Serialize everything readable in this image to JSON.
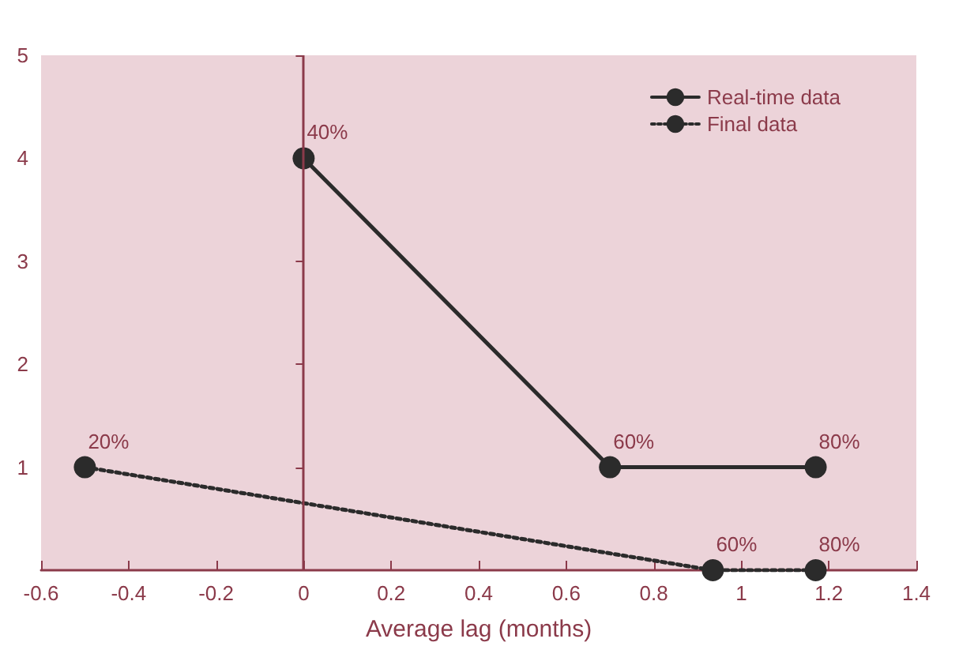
{
  "chart_data": {
    "type": "line",
    "xlabel": "Average lag (months)",
    "xlim": [
      -0.6,
      1.4
    ],
    "xticks": [
      -0.6,
      -0.4,
      -0.2,
      0,
      0.2,
      0.4,
      0.6,
      0.8,
      1,
      1.2,
      1.4
    ],
    "ylim": [
      0,
      5
    ],
    "yticks": [
      1,
      2,
      3,
      4,
      5
    ],
    "series": [
      {
        "name": "Real-time data",
        "color": "#2b2b2b",
        "x": [
          0,
          0.7,
          1.17
        ],
        "values": [
          4,
          1,
          1
        ],
        "line_style": "solid"
      },
      {
        "name": "Final data",
        "color": "#2b2b2b",
        "x": [
          -0.5,
          0.935,
          1.17
        ],
        "values": [
          1,
          0,
          0
        ],
        "line_style": "dotted"
      }
    ],
    "annotations": [
      {
        "text": "40%",
        "x": 0,
        "y": 4
      },
      {
        "text": "60%",
        "x": 0.7,
        "y": 1
      },
      {
        "text": "80%",
        "x": 1.17,
        "y": 1
      },
      {
        "text": "20%",
        "x": -0.5,
        "y": 1
      },
      {
        "text": "60%",
        "x": 0.935,
        "y": 0
      },
      {
        "text": "80%",
        "x": 1.17,
        "y": 0
      }
    ],
    "ref_lines": [
      {
        "axis": "x",
        "value": 0
      }
    ],
    "marker": "circle",
    "legend": "top right",
    "grid": false
  }
}
